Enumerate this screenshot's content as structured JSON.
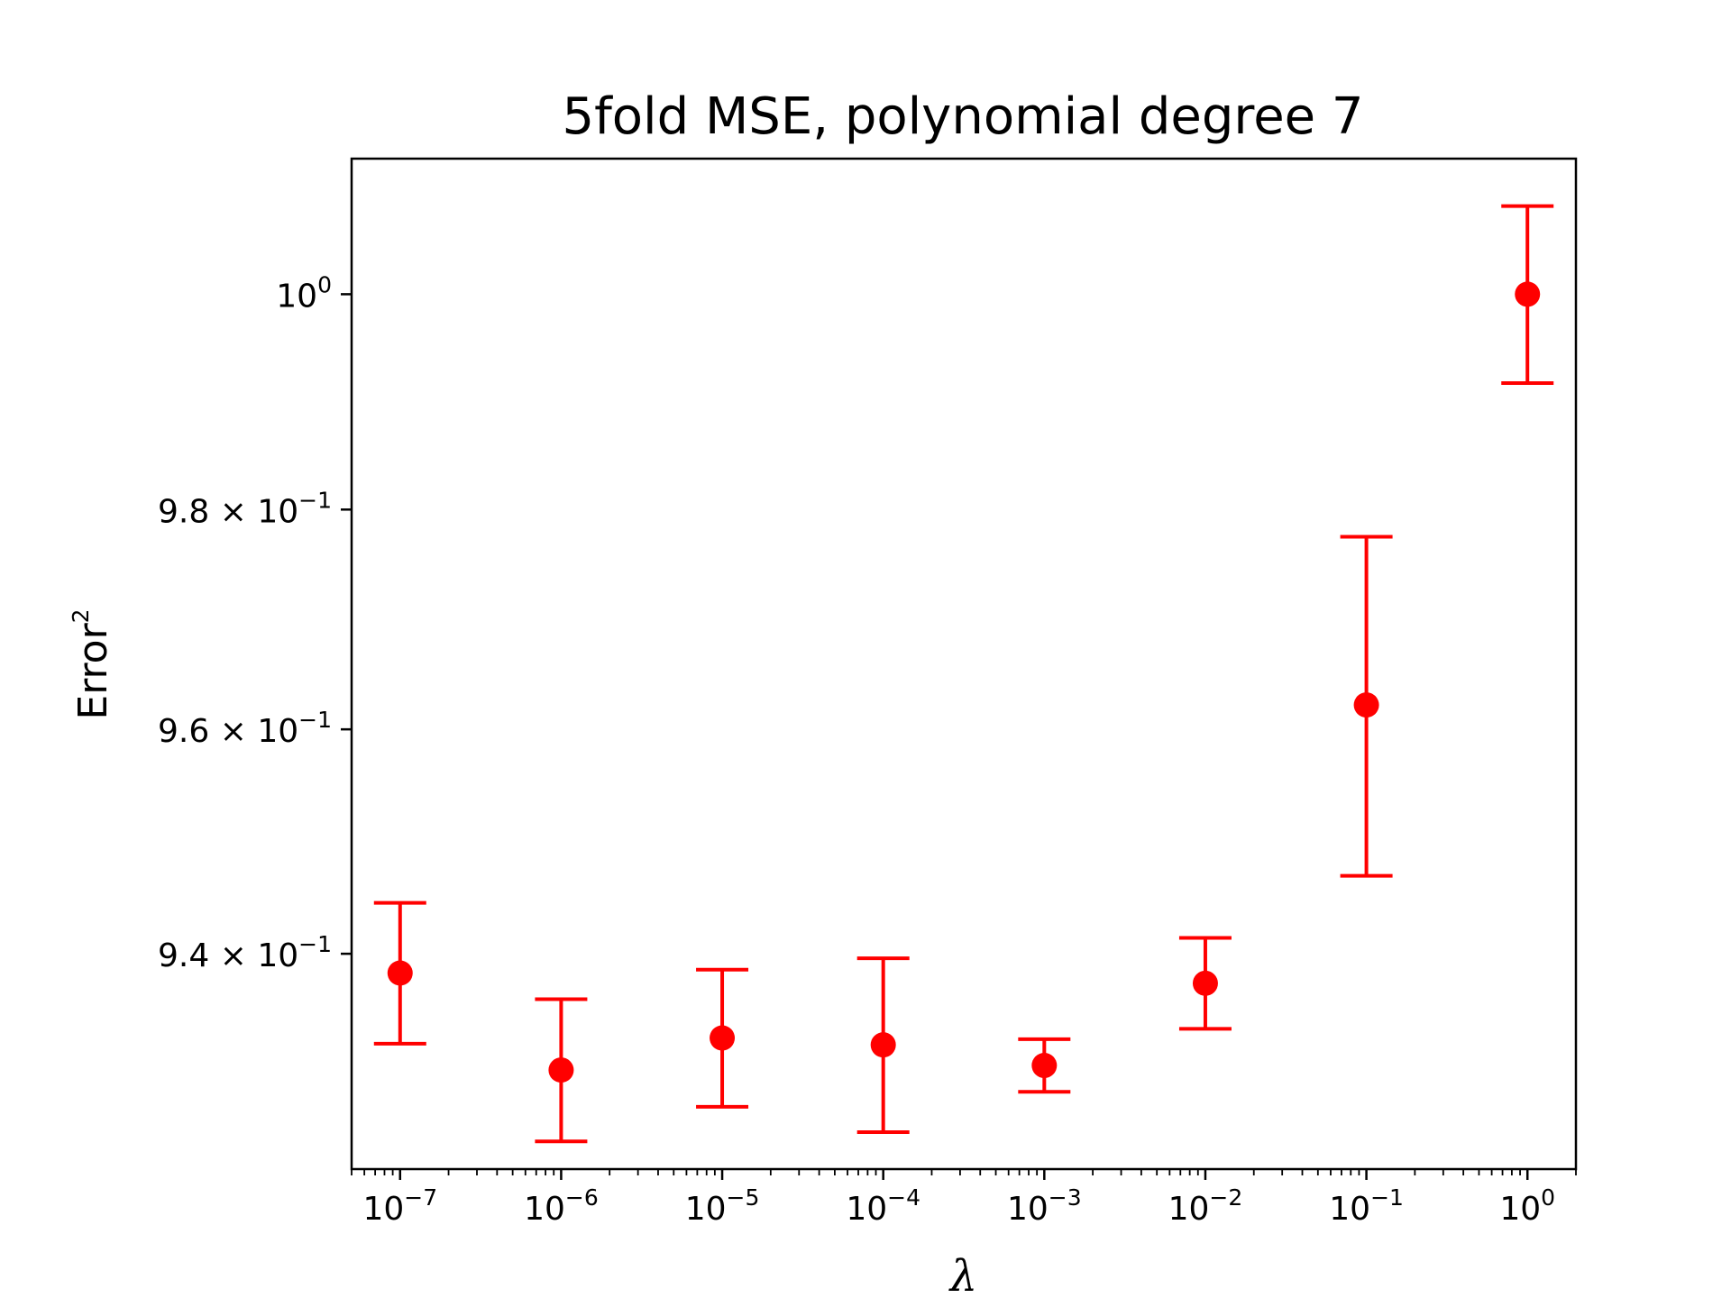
{
  "chart_data": {
    "type": "scatter",
    "title": "5fold MSE, polynomial degree 7",
    "xlabel": "λ",
    "ylabel": "Error",
    "ylabel_sup": "2",
    "x_scale": "log",
    "y_scale": "log",
    "xlim": [
      5e-08,
      2
    ],
    "ylim": [
      0.9212,
      1.0128
    ],
    "grid": false,
    "marker_color": "#ff0000",
    "x_ticks": [
      {
        "base": "10",
        "exp": "−7"
      },
      {
        "base": "10",
        "exp": "−6"
      },
      {
        "base": "10",
        "exp": "−5"
      },
      {
        "base": "10",
        "exp": "−4"
      },
      {
        "base": "10",
        "exp": "−3"
      },
      {
        "base": "10",
        "exp": "−2"
      },
      {
        "base": "10",
        "exp": "−1"
      },
      {
        "base": "10",
        "exp": "0"
      }
    ],
    "y_ticks": [
      {
        "value": 1.0,
        "base": "10",
        "exp": "0",
        "mantissa": ""
      },
      {
        "value": 0.98,
        "base": "10",
        "exp": "−1",
        "mantissa": "9.8 × "
      },
      {
        "value": 0.96,
        "base": "10",
        "exp": "−1",
        "mantissa": "9.6 × "
      },
      {
        "value": 0.94,
        "base": "10",
        "exp": "−1",
        "mantissa": "9.4 × "
      }
    ],
    "series": [
      {
        "x": [
          1e-07,
          1e-06,
          1e-05,
          0.0001,
          0.001,
          0.01,
          0.1,
          1
        ],
        "y": [
          0.9383,
          0.9298,
          0.9326,
          0.932,
          0.9302,
          0.9374,
          0.9622,
          1.0
        ],
        "yerr": [
          0.0062,
          0.0062,
          0.006,
          0.0076,
          0.0023,
          0.004,
          0.0153,
          0.0083
        ]
      }
    ]
  }
}
